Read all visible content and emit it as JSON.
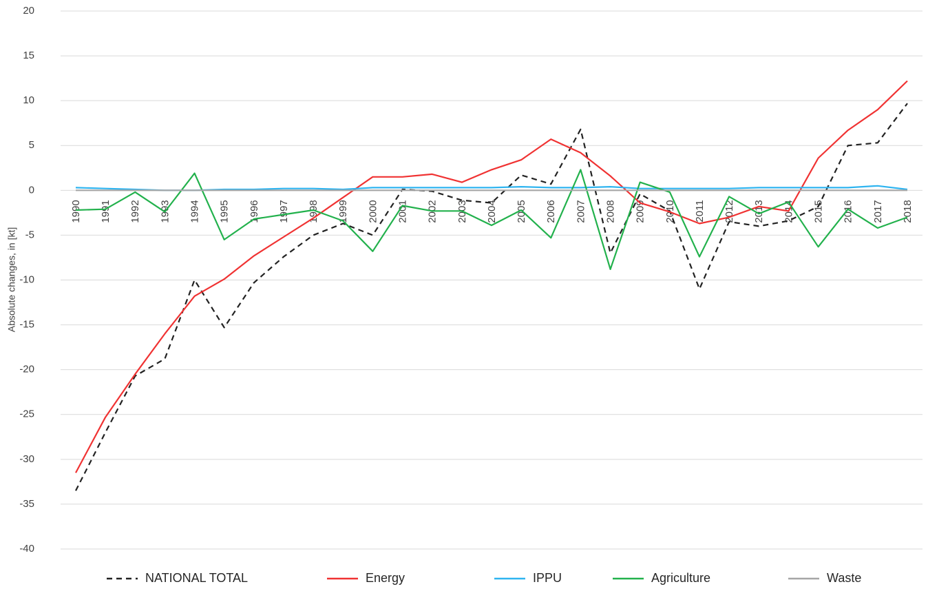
{
  "chart_data": {
    "type": "line",
    "y_label": "Absolute changes, in [kt]",
    "categories": [
      "1990",
      "1991",
      "1992",
      "1993",
      "1994",
      "1995",
      "1996",
      "1997",
      "1998",
      "1999",
      "2000",
      "2001",
      "2002",
      "2003",
      "2004",
      "2005",
      "2006",
      "2007",
      "2008",
      "2009",
      "2010",
      "2011",
      "2012",
      "2013",
      "2014",
      "2015",
      "2016",
      "2017",
      "2018"
    ],
    "ylim": [
      -40,
      20
    ],
    "yticks": [
      -40,
      -35,
      -30,
      -25,
      -20,
      -15,
      -10,
      -5,
      0,
      5,
      10,
      15,
      20
    ],
    "grid": true,
    "legend": "bottom",
    "series": [
      {
        "name": "NATIONAL TOTAL",
        "color": "#222222",
        "line_style": "dashed",
        "values": [
          -33.5,
          -27,
          -20.7,
          -18.8,
          -10,
          -15.3,
          -10.3,
          -7.4,
          -5,
          -3.7,
          -5,
          0.1,
          -0.1,
          -1.1,
          -1.4,
          1.7,
          0.7,
          6.8,
          -7,
          -0.4,
          -2.3,
          -11,
          -3.5,
          -4,
          -3.4,
          -1.8,
          5,
          5.3,
          9.7
        ]
      },
      {
        "name": "Energy",
        "color": "#f03232",
        "line_style": "solid",
        "values": [
          -31.5,
          -25.3,
          -20.5,
          -16,
          -11.8,
          -9.9,
          -7.3,
          -5.2,
          -3.1,
          -0.8,
          1.5,
          1.5,
          1.8,
          0.9,
          2.3,
          3.4,
          5.7,
          4.2,
          1.6,
          -1.4,
          -2.4,
          -3.7,
          -3,
          -1.8,
          -2.3,
          3.6,
          6.7,
          9,
          12.2
        ]
      },
      {
        "name": "IPPU",
        "color": "#2eb4f0",
        "line_style": "solid",
        "values": [
          0.3,
          0.2,
          0.1,
          0,
          0,
          0.1,
          0.1,
          0.2,
          0.2,
          0.1,
          0.3,
          0.3,
          0.3,
          0.3,
          0.3,
          0.4,
          0.3,
          0.3,
          0.4,
          0.2,
          0.2,
          0.2,
          0.2,
          0.3,
          0.3,
          0.3,
          0.3,
          0.5,
          0.1
        ]
      },
      {
        "name": "Agriculture",
        "color": "#22b14c",
        "line_style": "solid",
        "values": [
          -2.2,
          -2.1,
          -0.2,
          -2.4,
          1.9,
          -5.5,
          -3.2,
          -2.7,
          -2.2,
          -3.4,
          -6.8,
          -1.7,
          -2.3,
          -2.3,
          -3.9,
          -2.2,
          -5.3,
          2.3,
          -8.8,
          0.9,
          -0.2,
          -7.4,
          -0.7,
          -2.6,
          -1.3,
          -6.3,
          -2.1,
          -4.2,
          -3
        ]
      },
      {
        "name": "Waste",
        "color": "#a6a6a6",
        "line_style": "solid",
        "values": [
          0,
          0,
          0,
          0,
          0,
          0,
          0,
          0,
          0,
          0,
          0,
          0,
          0,
          0,
          0,
          0,
          0,
          0,
          0,
          0,
          0,
          0,
          0,
          0,
          0,
          0,
          0,
          0,
          0
        ]
      }
    ]
  }
}
